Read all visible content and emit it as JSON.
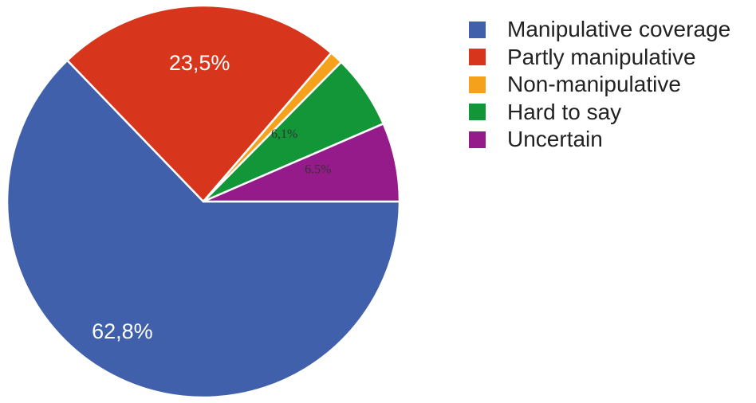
{
  "chart_data": {
    "type": "pie",
    "slices": [
      {
        "label": "Manipulative coverage",
        "value": 62.8,
        "value_label": "62,8%",
        "color": "#4160ab"
      },
      {
        "label": "Partly manipulative",
        "value": 23.5,
        "value_label": "23,5%",
        "color": "#d8361c"
      },
      {
        "label": "Non-manipulative",
        "value": 1.1,
        "value_label": "",
        "color": "#f6a11b"
      },
      {
        "label": "Hard to say",
        "value": 6.1,
        "value_label": "6,1%",
        "color": "#129637"
      },
      {
        "label": "Uncertain",
        "value": 6.5,
        "value_label": "6.5%",
        "color": "#951a8a"
      }
    ],
    "start_position": "right",
    "direction": "clockwise",
    "legend_placement": "right"
  }
}
